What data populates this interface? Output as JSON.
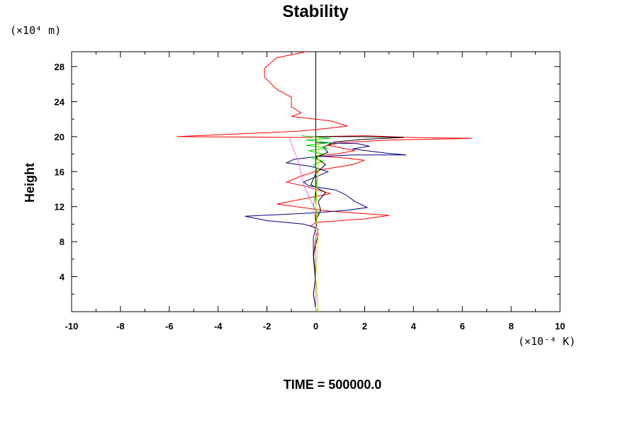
{
  "chart_data": {
    "type": "line",
    "title": "Stability",
    "ylabel": "Height",
    "y_unit": "(×10⁴ m)",
    "x_unit": "(×10⁻⁴ K)",
    "footer": "TIME = 500000.0",
    "xlim": [
      -10,
      10
    ],
    "ylim": [
      0,
      29.7
    ],
    "x_ticks": [
      -10,
      -8,
      -6,
      -4,
      -2,
      0,
      2,
      4,
      6,
      8,
      10
    ],
    "y_ticks": [
      4,
      8,
      12,
      16,
      20,
      24,
      28
    ],
    "x_tick_labels": [
      "-10",
      "-8",
      "-6",
      "-4",
      "-2",
      "0",
      "2",
      "4",
      "6",
      "8",
      "10"
    ],
    "y_tick_labels": [
      "4",
      "8",
      "12",
      "16",
      "20",
      "24",
      "28"
    ],
    "grid": false,
    "legend": "none",
    "zero_line": true,
    "series": [
      {
        "color": "#ff0000",
        "points": [
          [
            -0.4,
            29.7
          ],
          [
            -1.6,
            29.0
          ],
          [
            -2.1,
            27.8
          ],
          [
            -2.1,
            26.8
          ],
          [
            -1.6,
            25.4
          ],
          [
            -1.0,
            24.5
          ],
          [
            -1.0,
            23.4
          ],
          [
            -0.6,
            22.7
          ],
          [
            -1.0,
            22.3
          ],
          [
            0.6,
            21.8
          ],
          [
            1.3,
            21.2
          ],
          [
            0.0,
            20.8
          ],
          [
            -0.8,
            20.6
          ],
          [
            -5.7,
            20.0
          ],
          [
            -0.2,
            19.9
          ],
          [
            0.0,
            20.0
          ],
          [
            2.0,
            20.1
          ],
          [
            4.0,
            19.9
          ],
          [
            6.4,
            19.8
          ],
          [
            3.0,
            19.6
          ],
          [
            1.0,
            19.3
          ],
          [
            0.5,
            19.0
          ],
          [
            1.6,
            18.4
          ],
          [
            0.8,
            18.0
          ],
          [
            0.0,
            17.8
          ],
          [
            1.0,
            17.6
          ],
          [
            2.0,
            17.3
          ],
          [
            1.5,
            16.8
          ],
          [
            0.2,
            16.2
          ],
          [
            -0.6,
            15.5
          ],
          [
            -1.2,
            14.8
          ],
          [
            -0.4,
            14.3
          ],
          [
            0.6,
            13.5
          ],
          [
            -0.3,
            13.0
          ],
          [
            -1.6,
            12.3
          ],
          [
            0.5,
            11.5
          ],
          [
            3.0,
            11.0
          ],
          [
            2.0,
            10.6
          ],
          [
            0.0,
            10.2
          ],
          [
            -0.2,
            9.8
          ],
          [
            0.1,
            9.4
          ],
          [
            0.0,
            8.5
          ],
          [
            -0.1,
            6.0
          ],
          [
            0.0,
            4.0
          ],
          [
            -0.1,
            2.0
          ],
          [
            0.0,
            0.5
          ],
          [
            0.0,
            0.0
          ]
        ]
      },
      {
        "color": "#000080",
        "points": [
          [
            0.0,
            19.3
          ],
          [
            1.7,
            19.2
          ],
          [
            2.2,
            18.9
          ],
          [
            1.5,
            18.6
          ],
          [
            2.9,
            18.1
          ],
          [
            3.7,
            17.9
          ],
          [
            1.5,
            17.9
          ],
          [
            0.0,
            17.7
          ],
          [
            -0.9,
            17.4
          ],
          [
            -1.2,
            17.0
          ],
          [
            -0.2,
            16.6
          ],
          [
            0.5,
            16.0
          ],
          [
            0.0,
            15.4
          ],
          [
            -0.5,
            14.8
          ],
          [
            -0.3,
            14.4
          ],
          [
            0.8,
            13.9
          ],
          [
            1.2,
            13.4
          ],
          [
            1.6,
            12.6
          ],
          [
            2.1,
            11.9
          ],
          [
            1.3,
            11.6
          ],
          [
            0.0,
            11.3
          ],
          [
            -2.9,
            10.9
          ],
          [
            -2.0,
            10.4
          ],
          [
            -0.5,
            10.0
          ],
          [
            0.0,
            9.6
          ],
          [
            -0.1,
            8.5
          ],
          [
            -0.1,
            6.5
          ],
          [
            0.0,
            4.0
          ],
          [
            -0.1,
            2.0
          ],
          [
            0.0,
            0.3
          ]
        ]
      },
      {
        "color": "#000000",
        "points": [
          [
            0.0,
            20.0
          ],
          [
            1.9,
            20.0
          ],
          [
            3.6,
            19.9
          ],
          [
            2.0,
            19.7
          ],
          [
            0.8,
            19.4
          ],
          [
            0.3,
            18.8
          ],
          [
            0.5,
            18.2
          ],
          [
            0.0,
            17.6
          ],
          [
            0.4,
            16.8
          ],
          [
            0.0,
            15.8
          ],
          [
            -0.2,
            14.5
          ],
          [
            0.4,
            13.6
          ],
          [
            0.1,
            12.6
          ],
          [
            0.2,
            11.6
          ],
          [
            0.0,
            10.4
          ],
          [
            0.1,
            8.8
          ],
          [
            -0.1,
            6.5
          ],
          [
            0.0,
            3.0
          ],
          [
            0.0,
            0.3
          ]
        ]
      },
      {
        "color": "#00d000",
        "points": [
          [
            -0.6,
            20.1
          ],
          [
            0.6,
            19.8
          ],
          [
            -0.4,
            19.6
          ],
          [
            0.6,
            19.3
          ],
          [
            -0.4,
            19.0
          ],
          [
            0.5,
            18.7
          ],
          [
            -0.3,
            18.4
          ],
          [
            0.3,
            18.0
          ],
          [
            -0.2,
            17.6
          ],
          [
            0.3,
            17.2
          ],
          [
            -0.1,
            16.8
          ],
          [
            0.1,
            16.0
          ],
          [
            0.0,
            14.0
          ],
          [
            -0.1,
            12.0
          ],
          [
            0.1,
            11.3
          ],
          [
            0.0,
            10.0
          ],
          [
            0.0,
            4.0
          ],
          [
            0.1,
            0.3
          ],
          [
            0.0,
            0.0
          ]
        ]
      },
      {
        "color": "#ff66ff",
        "points": [
          [
            -1.1,
            20.0
          ],
          [
            -0.7,
            17.0
          ],
          [
            -0.5,
            14.5
          ],
          [
            -0.1,
            12.0
          ],
          [
            0.0,
            10.0
          ],
          [
            0.0,
            6.0
          ],
          [
            0.0,
            0.0
          ]
        ]
      },
      {
        "color": "#e8e800",
        "points": [
          [
            0.1,
            20.0
          ],
          [
            0.1,
            16.0
          ],
          [
            0.0,
            12.0
          ],
          [
            0.1,
            8.0
          ],
          [
            0.0,
            4.0
          ],
          [
            0.1,
            0.0
          ]
        ]
      }
    ]
  }
}
